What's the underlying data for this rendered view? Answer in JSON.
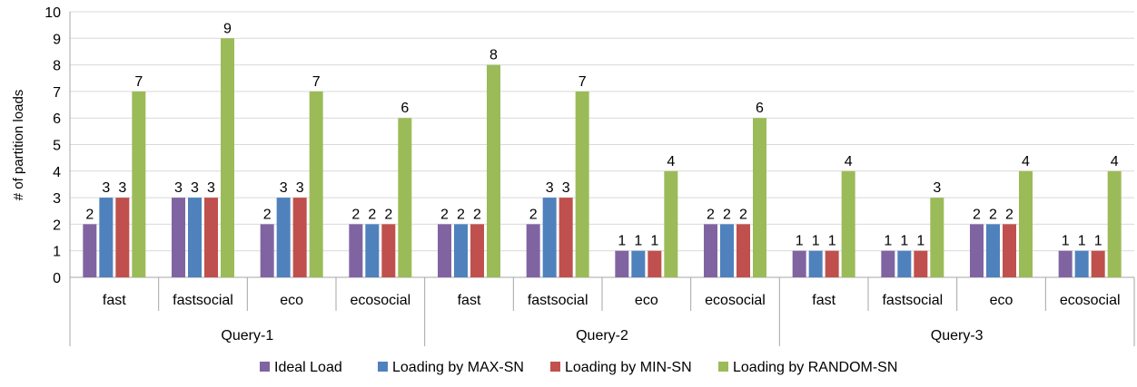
{
  "chart_data": {
    "type": "bar",
    "ylabel": "# of partition loads",
    "xlabel": "",
    "ylim": [
      0,
      10
    ],
    "yticks": [
      0,
      1,
      2,
      3,
      4,
      5,
      6,
      7,
      8,
      9,
      10
    ],
    "grid": true,
    "legend_position": "bottom",
    "groups": [
      {
        "label": "Query-1",
        "categories": [
          "fast",
          "fastsocial",
          "eco",
          "ecosocial"
        ]
      },
      {
        "label": "Query-2",
        "categories": [
          "fast",
          "fastsocial",
          "eco",
          "ecosocial"
        ]
      },
      {
        "label": "Query-3",
        "categories": [
          "fast",
          "fastsocial",
          "eco",
          "ecosocial"
        ]
      }
    ],
    "series": [
      {
        "name": "Ideal Load",
        "color": "#8064A2",
        "values": [
          2,
          3,
          2,
          2,
          2,
          2,
          1,
          2,
          1,
          1,
          2,
          1
        ]
      },
      {
        "name": "Loading by MAX-SN",
        "color": "#4F81BD",
        "values": [
          3,
          3,
          3,
          2,
          2,
          3,
          1,
          2,
          1,
          1,
          2,
          1
        ]
      },
      {
        "name": "Loading by MIN-SN",
        "color": "#C0504D",
        "values": [
          3,
          3,
          3,
          2,
          2,
          3,
          1,
          2,
          1,
          1,
          2,
          1
        ]
      },
      {
        "name": "Loading by RANDOM-SN",
        "color": "#9BBB59",
        "values": [
          7,
          9,
          7,
          6,
          8,
          7,
          4,
          6,
          4,
          3,
          4,
          4
        ]
      }
    ]
  }
}
